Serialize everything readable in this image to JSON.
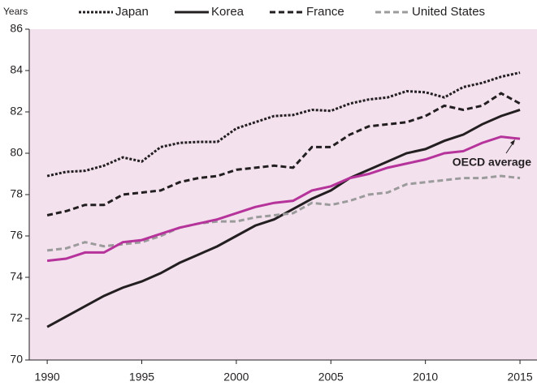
{
  "chart_data": {
    "type": "line",
    "y_label": "Years",
    "x": [
      1990,
      1991,
      1992,
      1993,
      1994,
      1995,
      1996,
      1997,
      1998,
      1999,
      2000,
      2001,
      2002,
      2003,
      2004,
      2005,
      2006,
      2007,
      2008,
      2009,
      2010,
      2011,
      2012,
      2013,
      2014,
      2015
    ],
    "series": [
      {
        "name": "Japan",
        "color": "#231f20",
        "dash": "3,2",
        "values": [
          78.9,
          79.1,
          79.15,
          79.4,
          79.8,
          79.6,
          80.3,
          80.5,
          80.55,
          80.55,
          81.2,
          81.5,
          81.8,
          81.85,
          82.1,
          82.05,
          82.4,
          82.6,
          82.7,
          83.0,
          82.95,
          82.7,
          83.2,
          83.4,
          83.7,
          83.9
        ]
      },
      {
        "name": "Korea",
        "color": "#231f20",
        "dash": "none",
        "values": [
          71.6,
          72.1,
          72.6,
          73.1,
          73.5,
          73.8,
          74.2,
          74.7,
          75.1,
          75.5,
          76.0,
          76.5,
          76.8,
          77.3,
          77.8,
          78.2,
          78.8,
          79.2,
          79.6,
          80.0,
          80.2,
          80.6,
          80.9,
          81.4,
          81.8,
          82.1
        ]
      },
      {
        "name": "France",
        "color": "#231f20",
        "dash": "7,4",
        "values": [
          77.0,
          77.2,
          77.5,
          77.5,
          78.0,
          78.1,
          78.2,
          78.6,
          78.8,
          78.9,
          79.2,
          79.3,
          79.4,
          79.3,
          80.3,
          80.3,
          80.9,
          81.3,
          81.4,
          81.5,
          81.8,
          82.3,
          82.1,
          82.3,
          82.9,
          82.4
        ]
      },
      {
        "name": "United States",
        "color": "#9b9b9b",
        "dash": "7,4",
        "values": [
          75.3,
          75.4,
          75.7,
          75.5,
          75.6,
          75.7,
          76.0,
          76.4,
          76.6,
          76.7,
          76.7,
          76.9,
          77.0,
          77.1,
          77.6,
          77.5,
          77.7,
          78.0,
          78.1,
          78.5,
          78.6,
          78.7,
          78.8,
          78.8,
          78.9,
          78.8
        ]
      }
    ],
    "oecd_average": {
      "name": "OECD average",
      "color": "#b5339a",
      "values": [
        74.8,
        74.9,
        75.2,
        75.2,
        75.7,
        75.8,
        76.1,
        76.4,
        76.6,
        76.8,
        77.1,
        77.4,
        77.6,
        77.7,
        78.2,
        78.4,
        78.8,
        79.0,
        79.3,
        79.5,
        79.7,
        80.0,
        80.1,
        80.5,
        80.8,
        80.7
      ]
    },
    "xlim": [
      1989.05,
      2015.9
    ],
    "xticks": [
      1990,
      1995,
      2000,
      2005,
      2010,
      2015
    ],
    "ylim": [
      70,
      86
    ],
    "yticks": [
      70,
      72,
      74,
      76,
      78,
      80,
      82,
      84,
      86
    ],
    "background": "#f3e1ee"
  }
}
